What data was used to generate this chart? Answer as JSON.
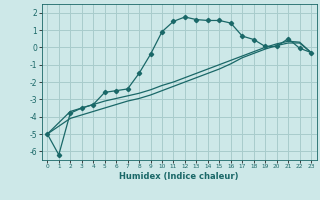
{
  "xlabel": "Humidex (Indice chaleur)",
  "bg_color": "#cde8e8",
  "grid_color": "#a8cccc",
  "line_color": "#1a6868",
  "xlim": [
    -0.5,
    23.5
  ],
  "ylim": [
    -6.5,
    2.5
  ],
  "xticks": [
    0,
    1,
    2,
    3,
    4,
    5,
    6,
    7,
    8,
    9,
    10,
    11,
    12,
    13,
    14,
    15,
    16,
    17,
    18,
    19,
    20,
    21,
    22,
    23
  ],
  "yticks": [
    -6,
    -5,
    -4,
    -3,
    -2,
    -1,
    0,
    1,
    2
  ],
  "line1_x": [
    0,
    1,
    2,
    3,
    4,
    5,
    6,
    7,
    8,
    9,
    10,
    11,
    12,
    13,
    14,
    15,
    16,
    17,
    18,
    19,
    20,
    21,
    22,
    23
  ],
  "line1_y": [
    -5.0,
    -6.2,
    -3.8,
    -3.5,
    -3.3,
    -2.6,
    -2.5,
    -2.4,
    -1.5,
    -0.4,
    0.9,
    1.5,
    1.75,
    1.6,
    1.55,
    1.55,
    1.4,
    0.65,
    0.45,
    0.05,
    0.05,
    0.5,
    -0.05,
    -0.3
  ],
  "line2_x": [
    0,
    2,
    3,
    4,
    5,
    6,
    7,
    8,
    9,
    10,
    11,
    12,
    13,
    14,
    15,
    16,
    17,
    18,
    19,
    20,
    21,
    22,
    23
  ],
  "line2_y": [
    -5.0,
    -3.7,
    -3.5,
    -3.3,
    -3.1,
    -2.95,
    -2.8,
    -2.65,
    -2.45,
    -2.2,
    -2.0,
    -1.75,
    -1.5,
    -1.25,
    -1.0,
    -0.75,
    -0.5,
    -0.25,
    0.0,
    0.2,
    0.35,
    0.3,
    -0.3
  ],
  "line3_x": [
    0,
    2,
    3,
    4,
    5,
    6,
    7,
    8,
    9,
    10,
    11,
    12,
    13,
    14,
    15,
    16,
    17,
    18,
    19,
    20,
    21,
    22,
    23
  ],
  "line3_y": [
    -5.0,
    -4.1,
    -3.9,
    -3.7,
    -3.5,
    -3.3,
    -3.1,
    -2.95,
    -2.75,
    -2.5,
    -2.25,
    -2.0,
    -1.75,
    -1.5,
    -1.25,
    -0.95,
    -0.6,
    -0.35,
    -0.1,
    0.1,
    0.25,
    0.25,
    -0.3
  ]
}
